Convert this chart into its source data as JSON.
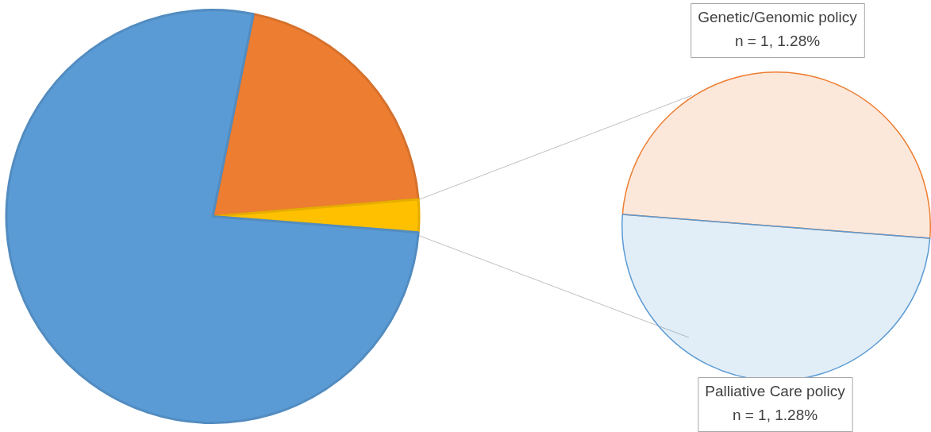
{
  "chart_data": [
    {
      "type": "pie",
      "categories": [
        null,
        null,
        null
      ],
      "values": [
        20.51,
        2.56,
        76.93
      ],
      "colors": [
        "#ed7d31",
        "#ffc000",
        "#5b9bd5"
      ],
      "legend": false
    },
    {
      "type": "pie",
      "categories": [
        "Genetic/Genomic policy",
        "Palliative Care policy"
      ],
      "values": [
        1.28,
        1.28
      ],
      "value_labels": [
        "n = 1, 1.28%",
        "n = 1, 1.28%"
      ],
      "colors": [
        "#ed7d31",
        "#5b9bd5"
      ],
      "legend": false
    }
  ]
}
